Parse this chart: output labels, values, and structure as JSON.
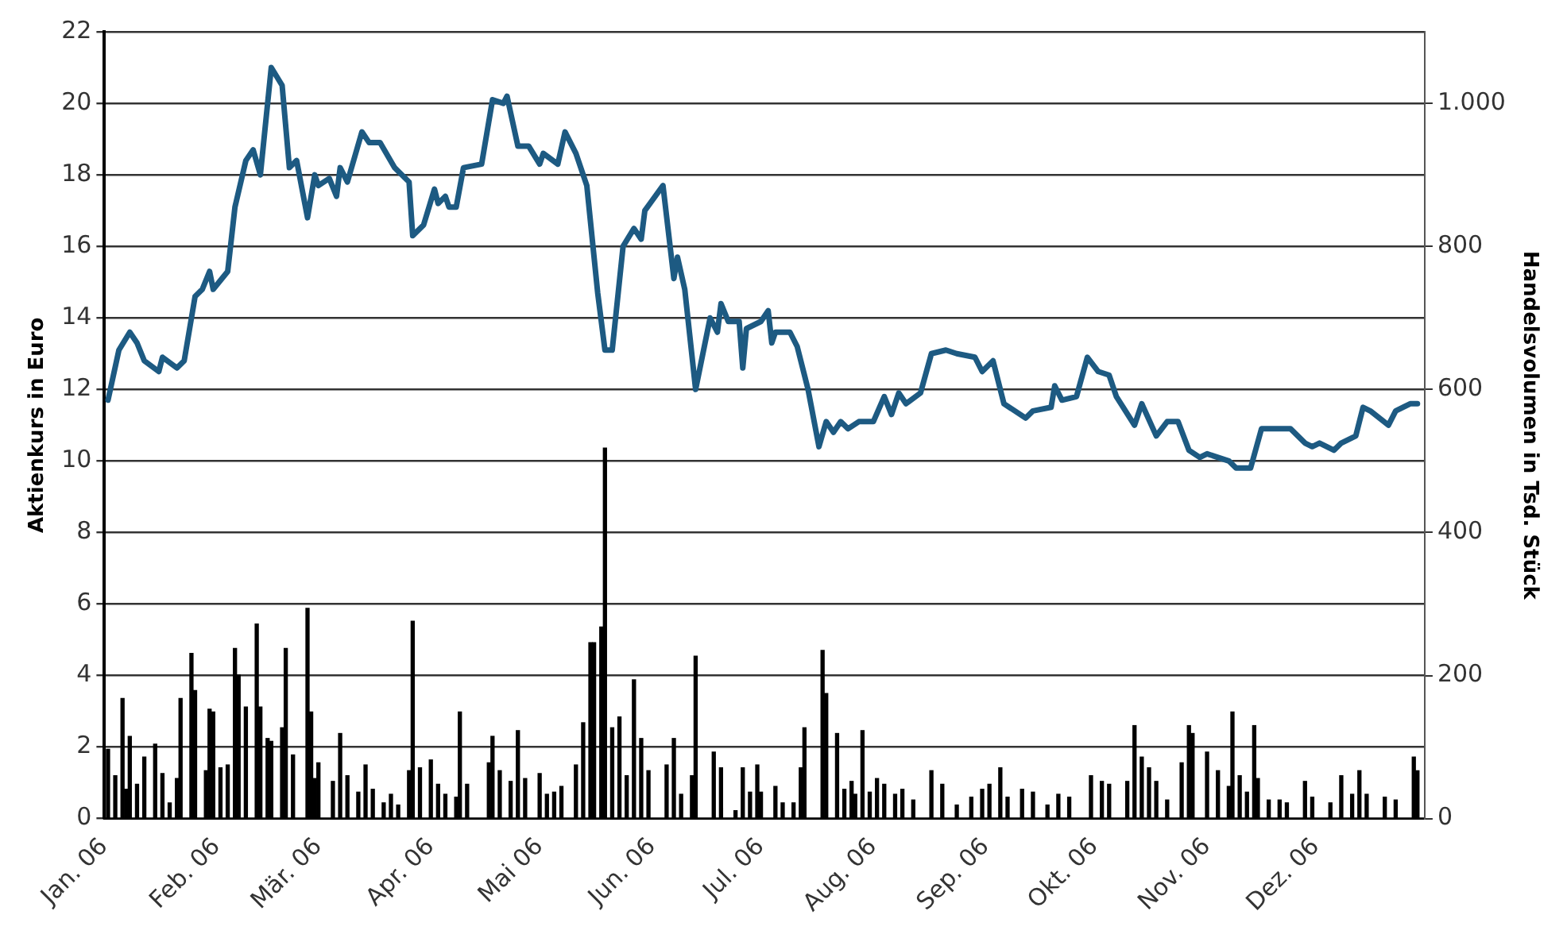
{
  "chart_data": {
    "type": "line",
    "ylabel": "Aktienkurs in Euro",
    "y2label": "Handelsvolumen in Tsd. Stück",
    "xlim": [
      "2006-01-01",
      "2006-12-31"
    ],
    "xticks": [
      {
        "value": "2006-01-01",
        "label": "Jan. 06"
      },
      {
        "value": "2006-02-01",
        "label": "Feb. 06"
      },
      {
        "value": "2006-03-01",
        "label": "Mär. 06"
      },
      {
        "value": "2006-04-01",
        "label": "Apr. 06"
      },
      {
        "value": "2006-05-01",
        "label": "Mai 06"
      },
      {
        "value": "2006-06-01",
        "label": "Jun. 06"
      },
      {
        "value": "2006-07-01",
        "label": "Jul. 06"
      },
      {
        "value": "2006-08-01",
        "label": "Aug. 06"
      },
      {
        "value": "2006-09-01",
        "label": "Sep. 06"
      },
      {
        "value": "2006-10-01",
        "label": "Okt. 06"
      },
      {
        "value": "2006-11-01",
        "label": "Nov. 06"
      },
      {
        "value": "2006-12-01",
        "label": "Dez. 06"
      }
    ],
    "ylim": [
      0,
      22
    ],
    "yticks": [
      0,
      2,
      4,
      6,
      8,
      10,
      12,
      14,
      16,
      18,
      20,
      22
    ],
    "y2lim": [
      0,
      1100
    ],
    "y2ticks": [
      0,
      200,
      400,
      600,
      800,
      {
        "value": 1000,
        "label": "1.000"
      }
    ],
    "grid": "y",
    "legend": false,
    "marker": "none",
    "line_style": "solid",
    "series": [
      {
        "type": "bar",
        "axis": "y2",
        "color": "#000000",
        "x": [
          "2006-01-02",
          "2006-01-04",
          "2006-01-06",
          "2006-01-07",
          "2006-01-08",
          "2006-01-10",
          "2006-01-12",
          "2006-01-15",
          "2006-01-17",
          "2006-01-19",
          "2006-01-21",
          "2006-01-22",
          "2006-01-25",
          "2006-01-26",
          "2006-01-29",
          "2006-01-30",
          "2006-01-31",
          "2006-02-02",
          "2006-02-04",
          "2006-02-06",
          "2006-02-07",
          "2006-02-09",
          "2006-02-12",
          "2006-02-13",
          "2006-02-15",
          "2006-02-16",
          "2006-02-19",
          "2006-02-20",
          "2006-02-22",
          "2006-02-26",
          "2006-02-27",
          "2006-02-28",
          "2006-03-01",
          "2006-03-05",
          "2006-03-07",
          "2006-03-09",
          "2006-03-12",
          "2006-03-14",
          "2006-03-16",
          "2006-03-19",
          "2006-03-21",
          "2006-03-23",
          "2006-03-26",
          "2006-03-27",
          "2006-03-29",
          "2006-04-01",
          "2006-04-03",
          "2006-04-05",
          "2006-04-08",
          "2006-04-09",
          "2006-04-11",
          "2006-04-17",
          "2006-04-18",
          "2006-04-20",
          "2006-04-23",
          "2006-04-25",
          "2006-04-27",
          "2006-05-01",
          "2006-05-03",
          "2006-05-05",
          "2006-05-07",
          "2006-05-11",
          "2006-05-13",
          "2006-05-15",
          "2006-05-16",
          "2006-05-18",
          "2006-05-19",
          "2006-05-21",
          "2006-05-23",
          "2006-05-25",
          "2006-05-27",
          "2006-05-29",
          "2006-05-31",
          "2006-06-05",
          "2006-06-07",
          "2006-06-09",
          "2006-06-12",
          "2006-06-13",
          "2006-06-18",
          "2006-06-20",
          "2006-06-24",
          "2006-06-26",
          "2006-06-28",
          "2006-06-30",
          "2006-07-01",
          "2006-07-05",
          "2006-07-07",
          "2006-07-10",
          "2006-07-12",
          "2006-07-13",
          "2006-07-18",
          "2006-07-19",
          "2006-07-22",
          "2006-07-24",
          "2006-07-26",
          "2006-07-27",
          "2006-07-29",
          "2006-07-31",
          "2006-08-02",
          "2006-08-04",
          "2006-08-07",
          "2006-08-09",
          "2006-08-12",
          "2006-08-17",
          "2006-08-20",
          "2006-08-24",
          "2006-08-28",
          "2006-08-31",
          "2006-09-02",
          "2006-09-05",
          "2006-09-07",
          "2006-09-11",
          "2006-09-14",
          "2006-09-18",
          "2006-09-21",
          "2006-09-24",
          "2006-09-30",
          "2006-10-03",
          "2006-10-05",
          "2006-10-10",
          "2006-10-12",
          "2006-10-14",
          "2006-10-16",
          "2006-10-18",
          "2006-10-21",
          "2006-10-25",
          "2006-10-27",
          "2006-10-28",
          "2006-11-01",
          "2006-11-04",
          "2006-11-07",
          "2006-11-08",
          "2006-11-10",
          "2006-11-12",
          "2006-11-14",
          "2006-11-15",
          "2006-11-18",
          "2006-11-21",
          "2006-11-23",
          "2006-11-28",
          "2006-11-30",
          "2006-12-05",
          "2006-12-08",
          "2006-12-11",
          "2006-12-13",
          "2006-12-15",
          "2006-12-20",
          "2006-12-23",
          "2006-12-28",
          "2006-12-29"
        ],
        "values": [
          97,
          60,
          168,
          41,
          115,
          48,
          86,
          104,
          63,
          22,
          56,
          168,
          231,
          179,
          67,
          153,
          149,
          71,
          75,
          238,
          201,
          156,
          272,
          156,
          112,
          108,
          127,
          238,
          89,
          294,
          149,
          56,
          78,
          52,
          119,
          60,
          37,
          75,
          41,
          22,
          34,
          19,
          67,
          276,
          71,
          82,
          48,
          34,
          30,
          149,
          48,
          78,
          115,
          67,
          52,
          123,
          56,
          63,
          34,
          37,
          45,
          75,
          134,
          246,
          246,
          268,
          518,
          127,
          142,
          60,
          194,
          112,
          67,
          75,
          112,
          34,
          60,
          227,
          93,
          71,
          11,
          71,
          37,
          75,
          37,
          45,
          22,
          22,
          71,
          127,
          235,
          175,
          119,
          41,
          52,
          34,
          123,
          37,
          56,
          48,
          34,
          41,
          26,
          67,
          48,
          19,
          30,
          41,
          48,
          71,
          30,
          41,
          37,
          19,
          34,
          30,
          60,
          52,
          48,
          52,
          130,
          86,
          71,
          52,
          26,
          78,
          130,
          119,
          93,
          67,
          45,
          149,
          60,
          37,
          130,
          56,
          26,
          26,
          22,
          52,
          30,
          22,
          60,
          34,
          67,
          34,
          30,
          26,
          86,
          67
        ]
      },
      {
        "color": "#1d5a82",
        "x": [
          "2006-01-02",
          "2006-01-05",
          "2006-01-08",
          "2006-01-10",
          "2006-01-12",
          "2006-01-16",
          "2006-01-17",
          "2006-01-21",
          "2006-01-23",
          "2006-01-26",
          "2006-01-28",
          "2006-01-30",
          "2006-01-31",
          "2006-02-04",
          "2006-02-06",
          "2006-02-09",
          "2006-02-11",
          "2006-02-13",
          "2006-02-16",
          "2006-02-19",
          "2006-02-21",
          "2006-02-23",
          "2006-02-26",
          "2006-02-28",
          "2006-03-01",
          "2006-03-04",
          "2006-03-06",
          "2006-03-07",
          "2006-03-09",
          "2006-03-13",
          "2006-03-15",
          "2006-03-18",
          "2006-03-22",
          "2006-03-26",
          "2006-03-27",
          "2006-03-30",
          "2006-04-02",
          "2006-04-03",
          "2006-04-05",
          "2006-04-06",
          "2006-04-08",
          "2006-04-10",
          "2006-04-15",
          "2006-04-17",
          "2006-04-18",
          "2006-04-21",
          "2006-04-22",
          "2006-04-25",
          "2006-04-28",
          "2006-05-01",
          "2006-05-02",
          "2006-05-06",
          "2006-05-08",
          "2006-05-11",
          "2006-05-14",
          "2006-05-17",
          "2006-05-19",
          "2006-05-21",
          "2006-05-24",
          "2006-05-27",
          "2006-05-29",
          "2006-05-30",
          "2006-06-04",
          "2006-06-07",
          "2006-06-08",
          "2006-06-10",
          "2006-06-13",
          "2006-06-17",
          "2006-06-19",
          "2006-06-20",
          "2006-06-22",
          "2006-06-25",
          "2006-06-26",
          "2006-06-27",
          "2006-07-01",
          "2006-07-03",
          "2006-07-04",
          "2006-07-05",
          "2006-07-09",
          "2006-07-11",
          "2006-07-14",
          "2006-07-17",
          "2006-07-19",
          "2006-07-21",
          "2006-07-23",
          "2006-07-25",
          "2006-07-28",
          "2006-08-01",
          "2006-08-04",
          "2006-08-06",
          "2006-08-08",
          "2006-08-10",
          "2006-08-14",
          "2006-08-17",
          "2006-08-21",
          "2006-08-24",
          "2006-08-29",
          "2006-08-31",
          "2006-09-03",
          "2006-09-06",
          "2006-09-12",
          "2006-09-14",
          "2006-09-19",
          "2006-09-20",
          "2006-09-22",
          "2006-09-26",
          "2006-09-29",
          "2006-10-02",
          "2006-10-05",
          "2006-10-07",
          "2006-10-12",
          "2006-10-14",
          "2006-10-18",
          "2006-10-21",
          "2006-10-24",
          "2006-10-27",
          "2006-10-30",
          "2006-11-01",
          "2006-11-07",
          "2006-11-09",
          "2006-11-13",
          "2006-11-16",
          "2006-11-24",
          "2006-11-28",
          "2006-11-30",
          "2006-12-02",
          "2006-12-06",
          "2006-12-08",
          "2006-12-12",
          "2006-12-14",
          "2006-12-16",
          "2006-12-21",
          "2006-12-23",
          "2006-12-27",
          "2006-12-29"
        ],
        "values": [
          11.7,
          13.1,
          13.6,
          13.3,
          12.8,
          12.5,
          12.9,
          12.6,
          12.8,
          14.6,
          14.8,
          15.3,
          14.8,
          15.3,
          17.1,
          18.4,
          18.7,
          18.0,
          21.0,
          20.5,
          18.2,
          18.4,
          16.8,
          18.0,
          17.7,
          17.9,
          17.4,
          18.2,
          17.8,
          19.2,
          18.9,
          18.9,
          18.2,
          17.8,
          16.3,
          16.6,
          17.6,
          17.2,
          17.4,
          17.1,
          17.1,
          18.2,
          18.3,
          19.5,
          20.1,
          20.0,
          20.2,
          18.8,
          18.8,
          18.3,
          18.6,
          18.3,
          19.2,
          18.6,
          17.7,
          14.7,
          13.1,
          13.1,
          16.0,
          16.5,
          16.2,
          17.0,
          17.7,
          15.1,
          15.7,
          14.8,
          12.0,
          14.0,
          13.6,
          14.4,
          13.9,
          13.9,
          12.6,
          13.7,
          13.9,
          14.2,
          13.3,
          13.6,
          13.6,
          13.2,
          12.0,
          10.4,
          11.1,
          10.8,
          11.1,
          10.9,
          11.1,
          11.1,
          11.8,
          11.3,
          11.9,
          11.6,
          11.9,
          13.0,
          13.1,
          13.0,
          12.9,
          12.5,
          12.8,
          11.6,
          11.2,
          11.4,
          11.5,
          12.1,
          11.7,
          11.8,
          12.9,
          12.5,
          12.4,
          11.8,
          11.0,
          11.6,
          10.7,
          11.1,
          11.1,
          10.3,
          10.1,
          10.2,
          10.0,
          9.8,
          9.8,
          10.9,
          10.9,
          10.5,
          10.4,
          10.5,
          10.3,
          10.5,
          10.7,
          11.5,
          11.4,
          11.0,
          11.4,
          11.6,
          11.6
        ]
      }
    ]
  }
}
